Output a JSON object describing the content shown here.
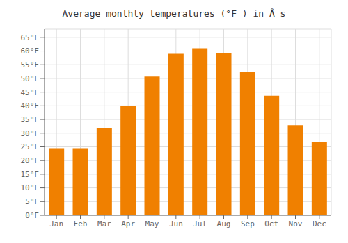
{
  "chart_data": {
    "type": "bar",
    "title": "Average monthly temperatures (°F ) in Å s",
    "categories": [
      "Jan",
      "Feb",
      "Mar",
      "Apr",
      "May",
      "Jun",
      "Jul",
      "Aug",
      "Sep",
      "Oct",
      "Nov",
      "Dec"
    ],
    "values": [
      24.5,
      24.5,
      32.0,
      39.9,
      50.7,
      59.0,
      61.0,
      59.3,
      52.3,
      43.7,
      32.9,
      26.8
    ],
    "color": "#F08000",
    "ylim": [
      0,
      68
    ],
    "yticks": [
      {
        "value": 0,
        "label": "0°F"
      },
      {
        "value": 5,
        "label": "5°F"
      },
      {
        "value": 10,
        "label": "10°F"
      },
      {
        "value": 15,
        "label": "15°F"
      },
      {
        "value": 20,
        "label": "20°F"
      },
      {
        "value": 25,
        "label": "25°F"
      },
      {
        "value": 30,
        "label": "30°F"
      },
      {
        "value": 35,
        "label": "35°F"
      },
      {
        "value": 40,
        "label": "40°F"
      },
      {
        "value": 45,
        "label": "45°F"
      },
      {
        "value": 50,
        "label": "50°F"
      },
      {
        "value": 55,
        "label": "55°F"
      },
      {
        "value": 60,
        "label": "60°F"
      },
      {
        "value": 65,
        "label": "65°F"
      }
    ],
    "grid": true
  }
}
